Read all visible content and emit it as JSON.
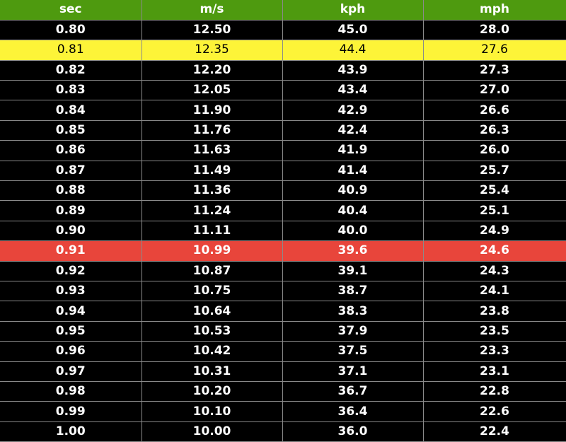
{
  "colors": {
    "header_bg": "#4e9a0f",
    "row_bg": "#000000",
    "highlight_yellow": "#fdf438",
    "highlight_red": "#e8453b",
    "text": "#ffffff"
  },
  "chart_data": {
    "type": "table",
    "columns": [
      "sec",
      "m/s",
      "kph",
      "mph"
    ],
    "rows": [
      [
        "0.80",
        "12.50",
        "45.0",
        "28.0"
      ],
      [
        "0.81",
        "12.35",
        "44.4",
        "27.6"
      ],
      [
        "0.82",
        "12.20",
        "43.9",
        "27.3"
      ],
      [
        "0.83",
        "12.05",
        "43.4",
        "27.0"
      ],
      [
        "0.84",
        "11.90",
        "42.9",
        "26.6"
      ],
      [
        "0.85",
        "11.76",
        "42.4",
        "26.3"
      ],
      [
        "0.86",
        "11.63",
        "41.9",
        "26.0"
      ],
      [
        "0.87",
        "11.49",
        "41.4",
        "25.7"
      ],
      [
        "0.88",
        "11.36",
        "40.9",
        "25.4"
      ],
      [
        "0.89",
        "11.24",
        "40.4",
        "25.1"
      ],
      [
        "0.90",
        "11.11",
        "40.0",
        "24.9"
      ],
      [
        "0.91",
        "10.99",
        "39.6",
        "24.6"
      ],
      [
        "0.92",
        "10.87",
        "39.1",
        "24.3"
      ],
      [
        "0.93",
        "10.75",
        "38.7",
        "24.1"
      ],
      [
        "0.94",
        "10.64",
        "38.3",
        "23.8"
      ],
      [
        "0.95",
        "10.53",
        "37.9",
        "23.5"
      ],
      [
        "0.96",
        "10.42",
        "37.5",
        "23.3"
      ],
      [
        "0.97",
        "10.31",
        "37.1",
        "23.1"
      ],
      [
        "0.98",
        "10.20",
        "36.7",
        "22.8"
      ],
      [
        "0.99",
        "10.10",
        "36.4",
        "22.6"
      ],
      [
        "1.00",
        "10.00",
        "36.0",
        "22.4"
      ]
    ],
    "highlights": [
      {
        "row": 1,
        "color": "yellow"
      },
      {
        "row": 11,
        "color": "red"
      }
    ]
  }
}
